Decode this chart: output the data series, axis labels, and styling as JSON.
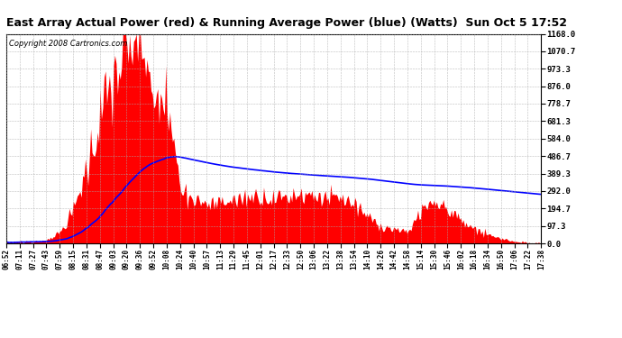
{
  "title": "East Array Actual Power (red) & Running Average Power (blue) (Watts)  Sun Oct 5 17:52",
  "copyright": "Copyright 2008 Cartronics.com",
  "y_ticks": [
    0.0,
    97.3,
    194.7,
    292.0,
    389.3,
    486.7,
    584.0,
    681.3,
    778.7,
    876.0,
    973.3,
    1070.7,
    1168.0
  ],
  "x_labels": [
    "06:52",
    "07:11",
    "07:27",
    "07:43",
    "07:59",
    "08:15",
    "08:31",
    "08:47",
    "09:03",
    "09:20",
    "09:36",
    "09:52",
    "10:08",
    "10:24",
    "10:40",
    "10:57",
    "11:13",
    "11:29",
    "11:45",
    "12:01",
    "12:17",
    "12:33",
    "12:50",
    "13:06",
    "13:22",
    "13:38",
    "13:54",
    "14:10",
    "14:26",
    "14:42",
    "14:58",
    "15:14",
    "15:30",
    "15:46",
    "16:02",
    "16:18",
    "16:34",
    "16:50",
    "17:06",
    "17:22",
    "17:38"
  ],
  "ymax": 1168.0,
  "ymin": 0.0,
  "fill_color": "#FF0000",
  "line_color": "#0000FF",
  "background_color": "#FFFFFF",
  "grid_color": "#AAAAAA",
  "title_fontsize": 9,
  "copyright_fontsize": 6
}
